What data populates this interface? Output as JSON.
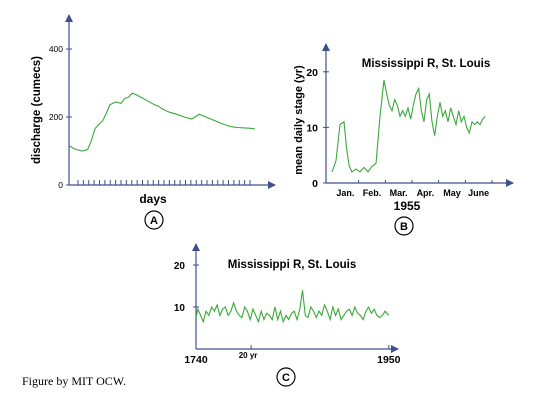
{
  "colors": {
    "axis": "#3d4f8c",
    "line": "#3aa83a",
    "text": "#000000",
    "circle": "#000000"
  },
  "credit": "Figure by MIT OCW.",
  "chart_data": [
    {
      "id": "A",
      "type": "line",
      "panel_label": "A",
      "title": "",
      "ylabel": "discharge (cumecs)",
      "xlabel": "days",
      "ylim": [
        0,
        500
      ],
      "yticks": [
        0,
        200,
        400
      ],
      "xlim": [
        0,
        100
      ],
      "x_tick_count": 33,
      "series": [
        {
          "x": [
            0,
            3,
            7,
            10,
            12,
            14,
            16,
            18,
            20,
            22,
            25,
            28,
            30,
            32,
            34,
            36,
            38,
            40,
            42,
            44,
            46,
            48,
            50,
            54,
            58,
            62,
            66,
            70,
            74,
            78,
            82,
            85,
            87,
            89,
            91,
            94,
            97,
            100
          ],
          "y": [
            116,
            106,
            100,
            104,
            130,
            166,
            178,
            188,
            210,
            236,
            244,
            240,
            255,
            258,
            270,
            266,
            260,
            254,
            248,
            242,
            236,
            232,
            224,
            214,
            208,
            200,
            194,
            208,
            199,
            190,
            181,
            175,
            172,
            170,
            169,
            168,
            167,
            165
          ]
        }
      ]
    },
    {
      "id": "B",
      "type": "line",
      "panel_label": "B",
      "title": "Mississippi R, St. Louis",
      "ylabel": "mean daily stage (yr)",
      "xlabel": "1955",
      "ylim": [
        0,
        25
      ],
      "yticks": [
        0,
        10,
        20
      ],
      "xlim": [
        0,
        6.3
      ],
      "x_ticklabels": [
        "Jan.",
        "Feb.",
        "Mar.",
        "Apr.",
        "May",
        "June"
      ],
      "series": [
        {
          "x": [
            0,
            0.15,
            0.3,
            0.45,
            0.55,
            0.65,
            0.75,
            0.9,
            1.05,
            1.2,
            1.35,
            1.5,
            1.65,
            1.8,
            1.95,
            2.05,
            2.15,
            2.25,
            2.35,
            2.45,
            2.55,
            2.65,
            2.75,
            2.85,
            2.95,
            3.05,
            3.15,
            3.25,
            3.35,
            3.45,
            3.55,
            3.65,
            3.75,
            3.85,
            3.95,
            4.05,
            4.15,
            4.25,
            4.35,
            4.45,
            4.55,
            4.65,
            4.75,
            4.85,
            4.95,
            5.05,
            5.15,
            5.25,
            5.35,
            5.45,
            5.55,
            5.65,
            5.75
          ],
          "y": [
            2,
            4,
            10.5,
            11,
            6,
            3,
            2,
            2.5,
            2,
            2.8,
            2,
            3,
            3.5,
            12,
            18.5,
            16,
            14,
            13,
            15,
            14,
            12,
            13,
            12,
            13.5,
            11.5,
            14,
            16,
            17,
            13,
            11,
            15,
            16,
            11,
            8.5,
            12,
            14.5,
            12,
            13,
            11,
            13.5,
            12,
            10.5,
            13,
            11,
            12,
            10,
            9,
            11,
            10.5,
            11,
            10.5,
            11.5,
            12
          ]
        }
      ]
    },
    {
      "id": "C",
      "type": "line",
      "panel_label": "C",
      "title": "Mississippi R, St. Louis",
      "ylabel": "",
      "xlabel": "",
      "ylim": [
        0,
        25
      ],
      "yticks": [
        10,
        20
      ],
      "x_ticklabels": [
        "1740",
        "20 yr",
        "1950"
      ],
      "x_tick_values": [
        1740,
        1800,
        1950
      ],
      "xlim": [
        1740,
        1960
      ],
      "series": [
        {
          "x": [
            1740,
            1742,
            1745,
            1748,
            1751,
            1754,
            1757,
            1760,
            1763,
            1766,
            1769,
            1772,
            1775,
            1778,
            1781,
            1784,
            1787,
            1790,
            1793,
            1796,
            1799,
            1802,
            1805,
            1808,
            1811,
            1814,
            1817,
            1820,
            1823,
            1826,
            1829,
            1832,
            1835,
            1838,
            1841,
            1844,
            1847,
            1850,
            1853,
            1856,
            1859,
            1862,
            1865,
            1868,
            1871,
            1874,
            1877,
            1880,
            1883,
            1886,
            1889,
            1892,
            1895,
            1898,
            1901,
            1904,
            1907,
            1910,
            1913,
            1916,
            1919,
            1922,
            1925,
            1928,
            1931,
            1934,
            1937,
            1940,
            1943,
            1946,
            1950
          ],
          "y": [
            7.5,
            9.5,
            8,
            6.5,
            9,
            8,
            10,
            9,
            10.5,
            8,
            9.5,
            10,
            8,
            9,
            11,
            9,
            8,
            7.5,
            10,
            9,
            7,
            9.5,
            8,
            6.5,
            9,
            7,
            8.5,
            8,
            7,
            10,
            7,
            9,
            6.5,
            8,
            7,
            8.5,
            9,
            7,
            9.5,
            14,
            8,
            7.5,
            10,
            9,
            7.5,
            9,
            8,
            10.5,
            9,
            7,
            10,
            8,
            9.5,
            7,
            8,
            9,
            9.5,
            8,
            10,
            8.5,
            8,
            7,
            9,
            10,
            8.5,
            9.5,
            8,
            7.5,
            8,
            9,
            8
          ]
        }
      ]
    }
  ]
}
